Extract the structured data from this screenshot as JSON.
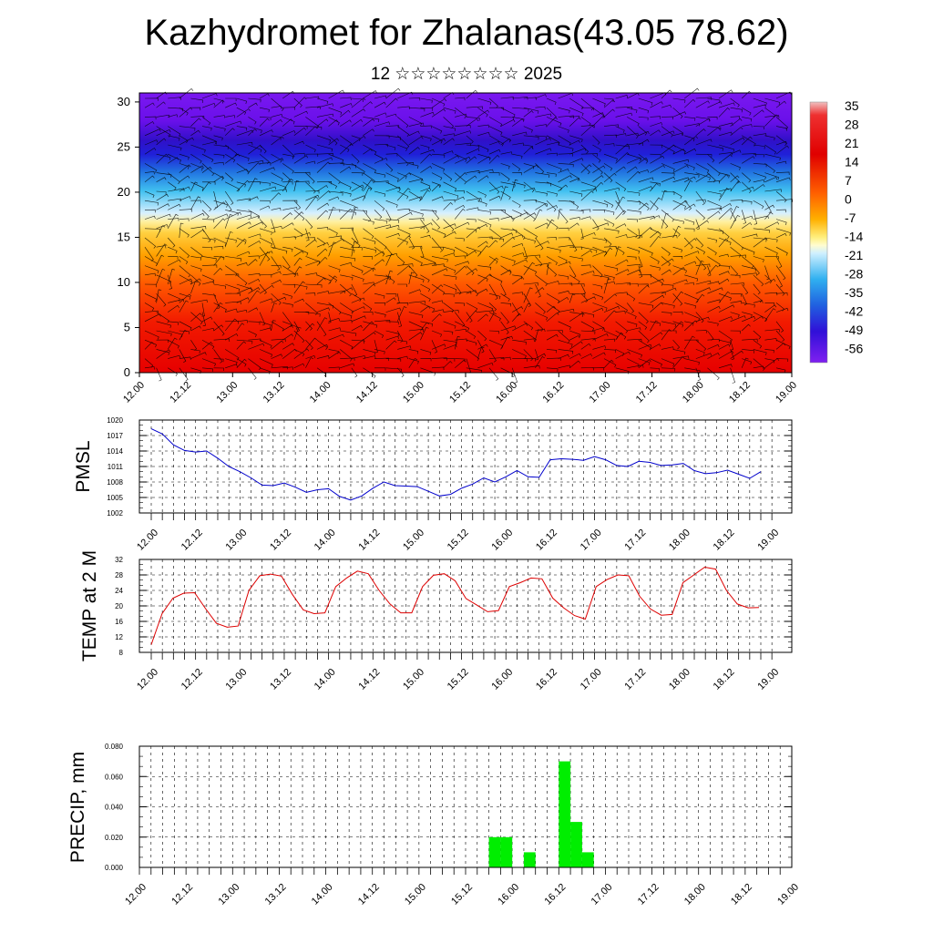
{
  "title": "Kazhydromet for Zhalanas(43.05 78.62)",
  "subtitle": "12 ☆☆☆☆☆☆☆☆ 2025",
  "chart_data": [
    {
      "type": "heatmap",
      "description_axes": "vertical cross-section with wind barbs",
      "x_tick_labels": [
        "12.00",
        "12.12",
        "13.00",
        "13.12",
        "14.00",
        "14.12",
        "15.00",
        "15.12",
        "16.00",
        "16.12",
        "17.00",
        "17.12",
        "18.00",
        "18.12",
        "19.00"
      ],
      "y_ticks": [
        0,
        5,
        10,
        15,
        20,
        25,
        30
      ],
      "ylim": [
        0,
        31
      ],
      "colorbar_labels": [
        "35",
        "28",
        "21",
        "14",
        "7",
        "0",
        "-7",
        "-14",
        "-21",
        "-28",
        "-35",
        "-42",
        "-49",
        "-56"
      ],
      "colors": {
        "warm": "#e80000",
        "mid": "#ffe070",
        "cold": "#5a10ee"
      }
    },
    {
      "type": "line",
      "ylabel": "PMSL",
      "ylim": [
        1002,
        1020
      ],
      "y_tick_labels": [
        "1002",
        "1005",
        "1008",
        "1011",
        "1014",
        "1017",
        "1020"
      ],
      "x_tick_labels": [
        "12.00",
        "12.12",
        "13.00",
        "13.12",
        "14.00",
        "14.12",
        "15.00",
        "15.12",
        "16.00",
        "16.12",
        "17.00",
        "17.12",
        "18.00",
        "18.12",
        "19.00"
      ],
      "color": "#0000cc",
      "values": [
        1018.3,
        1017.3,
        1015.2,
        1014.1,
        1013.8,
        1014.0,
        1012.6,
        1011.0,
        1010.0,
        1008.8,
        1007.4,
        1007.3,
        1007.8,
        1007.0,
        1006.0,
        1006.5,
        1006.7,
        1005.2,
        1004.5,
        1005.3,
        1006.8,
        1008.0,
        1007.3,
        1007.2,
        1007.1,
        1006.2,
        1005.3,
        1005.6,
        1006.8,
        1007.6,
        1008.8,
        1008.0,
        1009.0,
        1010.2,
        1009.0,
        1008.9,
        1012.3,
        1012.5,
        1012.4,
        1012.2,
        1012.9,
        1012.3,
        1011.2,
        1011.0,
        1012.0,
        1011.8,
        1011.2,
        1011.3,
        1011.6,
        1010.2,
        1009.6,
        1009.8,
        1010.3,
        1009.5,
        1008.7,
        1010.0
      ]
    },
    {
      "type": "line",
      "ylabel": "TEMP at 2 M",
      "ylim": [
        8,
        32
      ],
      "y_tick_labels": [
        "8",
        "12",
        "16",
        "20",
        "24",
        "28",
        "32"
      ],
      "x_tick_labels": [
        "12.00",
        "12.12",
        "13.00",
        "13.12",
        "14.00",
        "14.12",
        "15.00",
        "15.12",
        "16.00",
        "16.12",
        "17.00",
        "17.12",
        "18.00",
        "18.12",
        "19.00"
      ],
      "color": "#dd0000",
      "values": [
        10,
        18,
        22,
        23.3,
        23.4,
        19.3,
        15.5,
        14.5,
        14.8,
        24,
        27.8,
        28.2,
        27.7,
        23,
        19,
        18,
        18.2,
        25,
        27.2,
        29,
        28.3,
        24,
        20.5,
        18.2,
        18.2,
        25,
        27.9,
        28.3,
        26.5,
        21.9,
        20.2,
        18.5,
        18.8,
        25,
        26,
        27.2,
        27,
        22,
        19.5,
        17.5,
        16.6,
        25,
        26.8,
        28,
        27.8,
        22.5,
        19.2,
        17.6,
        17.8,
        26,
        28,
        30,
        29.5,
        24,
        20.5,
        19.5,
        19.6
      ]
    },
    {
      "type": "bar",
      "ylabel": "PRECIP, mm",
      "ylim": [
        0,
        0.08
      ],
      "y_tick_labels": [
        "0.000",
        "0.020",
        "0.040",
        "0.060",
        "0.080"
      ],
      "x_tick_labels": [
        "12.00",
        "12.12",
        "13.00",
        "13.12",
        "14.00",
        "14.12",
        "15.00",
        "15.12",
        "16.00",
        "16.12",
        "17.00",
        "17.12",
        "18.00",
        "18.12",
        "19.00"
      ],
      "color": "#00ee00",
      "bars": [
        {
          "x_hours": 93,
          "value": 0.02
        },
        {
          "x_hours": 96,
          "value": 0.02
        },
        {
          "x_hours": 102,
          "value": 0.01
        },
        {
          "x_hours": 111,
          "value": 0.07
        },
        {
          "x_hours": 114,
          "value": 0.03
        },
        {
          "x_hours": 117,
          "value": 0.01
        }
      ]
    }
  ]
}
